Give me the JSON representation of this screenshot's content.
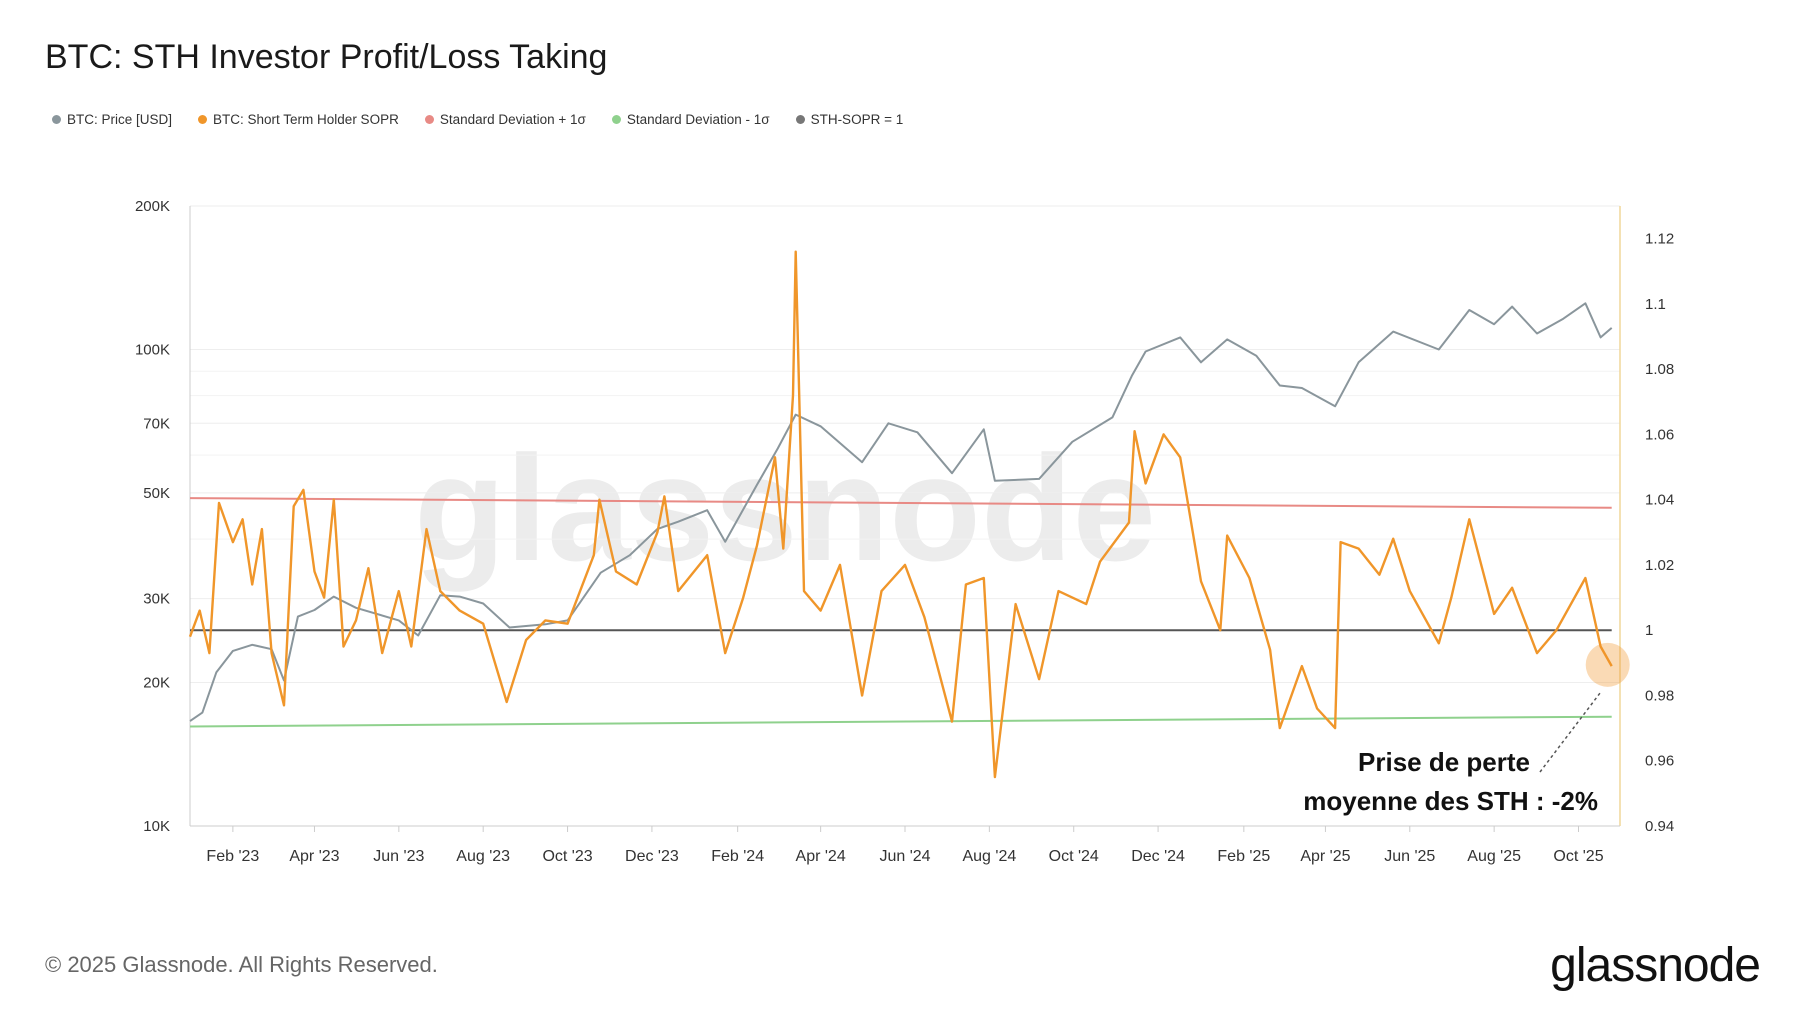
{
  "chart_data": {
    "type": "line",
    "title": "BTC: STH Investor Profit/Loss Taking",
    "x_ticks": [
      "Feb '23",
      "Apr '23",
      "Jun '23",
      "Aug '23",
      "Oct '23",
      "Dec '23",
      "Feb '24",
      "Apr '24",
      "Jun '24",
      "Aug '24",
      "Oct '24",
      "Dec '24",
      "Feb '25",
      "Apr '25",
      "Jun '25",
      "Aug '25",
      "Oct '25"
    ],
    "y_left": {
      "scale": "log",
      "range": [
        10000,
        200000
      ],
      "ticks": [
        10000,
        20000,
        30000,
        50000,
        70000,
        100000,
        200000
      ],
      "tick_labels": [
        "10K",
        "20K",
        "30K",
        "50K",
        "70K",
        "100K",
        "200K"
      ]
    },
    "y_right": {
      "scale": "linear",
      "range": [
        0.94,
        1.13
      ],
      "ticks": [
        0.94,
        0.96,
        0.98,
        1,
        1.02,
        1.04,
        1.06,
        1.08,
        1.1,
        1.12
      ],
      "tick_labels": [
        "0.94",
        "0.96",
        "0.98",
        "1",
        "1.02",
        "1.04",
        "1.06",
        "1.08",
        "1.1",
        "1.12"
      ]
    },
    "x_range": [
      "2023-01-01",
      "2025-10-31"
    ],
    "series": [
      {
        "name": "BTC: Price [USD]",
        "axis": "left",
        "color": "#8a969c",
        "points": [
          [
            "2023-01-01",
            16600
          ],
          [
            "2023-01-10",
            17300
          ],
          [
            "2023-01-20",
            21000
          ],
          [
            "2023-02-01",
            23300
          ],
          [
            "2023-02-15",
            24000
          ],
          [
            "2023-03-01",
            23500
          ],
          [
            "2023-03-10",
            20200
          ],
          [
            "2023-03-20",
            27500
          ],
          [
            "2023-04-01",
            28400
          ],
          [
            "2023-04-15",
            30300
          ],
          [
            "2023-05-01",
            28700
          ],
          [
            "2023-06-01",
            27000
          ],
          [
            "2023-06-15",
            25100
          ],
          [
            "2023-07-01",
            30500
          ],
          [
            "2023-07-15",
            30300
          ],
          [
            "2023-08-01",
            29300
          ],
          [
            "2023-08-20",
            26100
          ],
          [
            "2023-09-15",
            26500
          ],
          [
            "2023-10-01",
            27000
          ],
          [
            "2023-10-25",
            34000
          ],
          [
            "2023-11-15",
            37000
          ],
          [
            "2023-12-05",
            42000
          ],
          [
            "2023-12-20",
            43500
          ],
          [
            "2024-01-10",
            46000
          ],
          [
            "2024-01-23",
            39500
          ],
          [
            "2024-02-15",
            52000
          ],
          [
            "2024-03-01",
            62000
          ],
          [
            "2024-03-14",
            73000
          ],
          [
            "2024-04-01",
            69000
          ],
          [
            "2024-05-01",
            58000
          ],
          [
            "2024-05-20",
            70000
          ],
          [
            "2024-06-10",
            67000
          ],
          [
            "2024-07-05",
            55000
          ],
          [
            "2024-07-28",
            68000
          ],
          [
            "2024-08-05",
            53000
          ],
          [
            "2024-09-06",
            53500
          ],
          [
            "2024-09-30",
            64000
          ],
          [
            "2024-10-29",
            72000
          ],
          [
            "2024-11-12",
            88000
          ],
          [
            "2024-11-22",
            99000
          ],
          [
            "2024-12-17",
            106000
          ],
          [
            "2025-01-01",
            94000
          ],
          [
            "2025-01-20",
            105000
          ],
          [
            "2025-02-10",
            97000
          ],
          [
            "2025-02-27",
            84000
          ],
          [
            "2025-03-15",
            83000
          ],
          [
            "2025-04-08",
            76000
          ],
          [
            "2025-04-25",
            94000
          ],
          [
            "2025-05-20",
            109000
          ],
          [
            "2025-06-22",
            100000
          ],
          [
            "2025-07-14",
            121000
          ],
          [
            "2025-08-01",
            113000
          ],
          [
            "2025-08-14",
            123000
          ],
          [
            "2025-09-01",
            108000
          ],
          [
            "2025-09-20",
            116000
          ],
          [
            "2025-10-06",
            125000
          ],
          [
            "2025-10-17",
            106000
          ],
          [
            "2025-10-25",
            111000
          ]
        ]
      },
      {
        "name": "BTC: Short Term Holder SOPR",
        "axis": "right",
        "color": "#f0962a",
        "points": [
          [
            "2023-01-01",
            0.998
          ],
          [
            "2023-01-08",
            1.006
          ],
          [
            "2023-01-15",
            0.993
          ],
          [
            "2023-01-22",
            1.039
          ],
          [
            "2023-02-01",
            1.027
          ],
          [
            "2023-02-08",
            1.034
          ],
          [
            "2023-02-15",
            1.014
          ],
          [
            "2023-02-22",
            1.031
          ],
          [
            "2023-03-01",
            0.993
          ],
          [
            "2023-03-10",
            0.977
          ],
          [
            "2023-03-17",
            1.038
          ],
          [
            "2023-03-24",
            1.043
          ],
          [
            "2023-04-01",
            1.018
          ],
          [
            "2023-04-08",
            1.01
          ],
          [
            "2023-04-15",
            1.04
          ],
          [
            "2023-04-22",
            0.995
          ],
          [
            "2023-05-01",
            1.003
          ],
          [
            "2023-05-10",
            1.019
          ],
          [
            "2023-05-20",
            0.993
          ],
          [
            "2023-06-01",
            1.012
          ],
          [
            "2023-06-10",
            0.995
          ],
          [
            "2023-06-21",
            1.031
          ],
          [
            "2023-07-01",
            1.012
          ],
          [
            "2023-07-15",
            1.006
          ],
          [
            "2023-08-01",
            1.002
          ],
          [
            "2023-08-18",
            0.978
          ],
          [
            "2023-09-01",
            0.997
          ],
          [
            "2023-09-15",
            1.003
          ],
          [
            "2023-10-01",
            1.002
          ],
          [
            "2023-10-20",
            1.023
          ],
          [
            "2023-10-24",
            1.04
          ],
          [
            "2023-11-05",
            1.018
          ],
          [
            "2023-11-20",
            1.014
          ],
          [
            "2023-12-05",
            1.03
          ],
          [
            "2023-12-10",
            1.041
          ],
          [
            "2023-12-20",
            1.012
          ],
          [
            "2024-01-10",
            1.023
          ],
          [
            "2024-01-23",
            0.993
          ],
          [
            "2024-02-05",
            1.01
          ],
          [
            "2024-02-15",
            1.026
          ],
          [
            "2024-02-28",
            1.053
          ],
          [
            "2024-03-05",
            1.025
          ],
          [
            "2024-03-12",
            1.072
          ],
          [
            "2024-03-14",
            1.116
          ],
          [
            "2024-03-20",
            1.012
          ],
          [
            "2024-04-01",
            1.006
          ],
          [
            "2024-04-15",
            1.02
          ],
          [
            "2024-05-01",
            0.98
          ],
          [
            "2024-05-15",
            1.012
          ],
          [
            "2024-06-01",
            1.02
          ],
          [
            "2024-06-15",
            1.004
          ],
          [
            "2024-07-05",
            0.972
          ],
          [
            "2024-07-15",
            1.014
          ],
          [
            "2024-07-28",
            1.016
          ],
          [
            "2024-08-05",
            0.955
          ],
          [
            "2024-08-20",
            1.008
          ],
          [
            "2024-09-06",
            0.985
          ],
          [
            "2024-09-20",
            1.012
          ],
          [
            "2024-10-10",
            1.008
          ],
          [
            "2024-10-20",
            1.021
          ],
          [
            "2024-11-10",
            1.033
          ],
          [
            "2024-11-14",
            1.061
          ],
          [
            "2024-11-22",
            1.045
          ],
          [
            "2024-12-05",
            1.06
          ],
          [
            "2024-12-17",
            1.053
          ],
          [
            "2025-01-01",
            1.015
          ],
          [
            "2025-01-15",
            1.0
          ],
          [
            "2025-01-20",
            1.029
          ],
          [
            "2025-02-05",
            1.016
          ],
          [
            "2025-02-20",
            0.994
          ],
          [
            "2025-02-27",
            0.97
          ],
          [
            "2025-03-15",
            0.989
          ],
          [
            "2025-03-26",
            0.976
          ],
          [
            "2025-04-08",
            0.97
          ],
          [
            "2025-04-12",
            1.027
          ],
          [
            "2025-04-25",
            1.025
          ],
          [
            "2025-05-10",
            1.017
          ],
          [
            "2025-05-20",
            1.028
          ],
          [
            "2025-06-01",
            1.012
          ],
          [
            "2025-06-22",
            0.996
          ],
          [
            "2025-07-01",
            1.01
          ],
          [
            "2025-07-14",
            1.034
          ],
          [
            "2025-08-01",
            1.005
          ],
          [
            "2025-08-14",
            1.013
          ],
          [
            "2025-09-01",
            0.993
          ],
          [
            "2025-09-15",
            1.0
          ],
          [
            "2025-10-06",
            1.016
          ],
          [
            "2025-10-17",
            0.995
          ],
          [
            "2025-10-25",
            0.989
          ]
        ]
      },
      {
        "name": "Standard Deviation + 1σ",
        "axis": "right",
        "color": "#e88a85",
        "points": [
          [
            "2023-01-01",
            1.0405
          ],
          [
            "2025-10-25",
            1.0375
          ]
        ]
      },
      {
        "name": "Standard Deviation - 1σ",
        "axis": "right",
        "color": "#8fd18d",
        "points": [
          [
            "2023-01-01",
            0.9705
          ],
          [
            "2025-10-25",
            0.9735
          ]
        ]
      },
      {
        "name": "STH-SOPR = 1",
        "axis": "right",
        "color": "#555555",
        "points": [
          [
            "2023-01-01",
            1.0
          ],
          [
            "2025-10-25",
            1.0
          ]
        ]
      }
    ],
    "annotation": {
      "text_line1": "Prise de perte",
      "text_line2": "moyenne des STH : -2%",
      "target": [
        "2025-10-25",
        0.99
      ]
    },
    "legend_position": "top-left",
    "grid": true,
    "watermark": "glassnode"
  },
  "footer": {
    "copyright": "© 2025 Glassnode. All Rights Reserved.",
    "logo": "glassnode"
  }
}
